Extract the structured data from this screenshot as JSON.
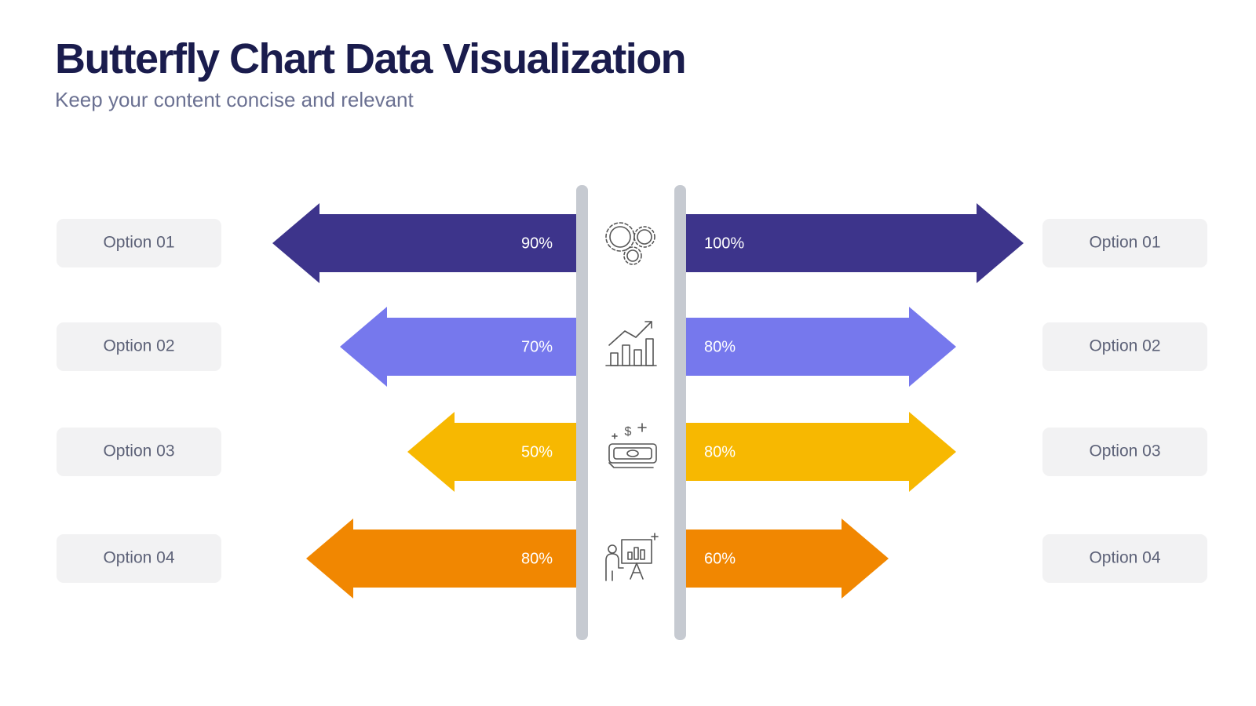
{
  "chart_data": {
    "type": "butterfly",
    "title": "Butterfly Chart Data Visualization",
    "subtitle": "Keep your content concise and relevant",
    "categories": [
      "Option 01",
      "Option 02",
      "Option 03",
      "Option 04"
    ],
    "colors": [
      "#3d348b",
      "#7678ed",
      "#f7b801",
      "#f18701"
    ],
    "series": [
      {
        "values": [
          90,
          70,
          50,
          80
        ],
        "value_labels": [
          "90%",
          "70%",
          "50%",
          "80%"
        ]
      },
      {
        "values": [
          100,
          80,
          80,
          60
        ],
        "value_labels": [
          "100%",
          "80%",
          "80%",
          "60%"
        ]
      }
    ]
  }
}
